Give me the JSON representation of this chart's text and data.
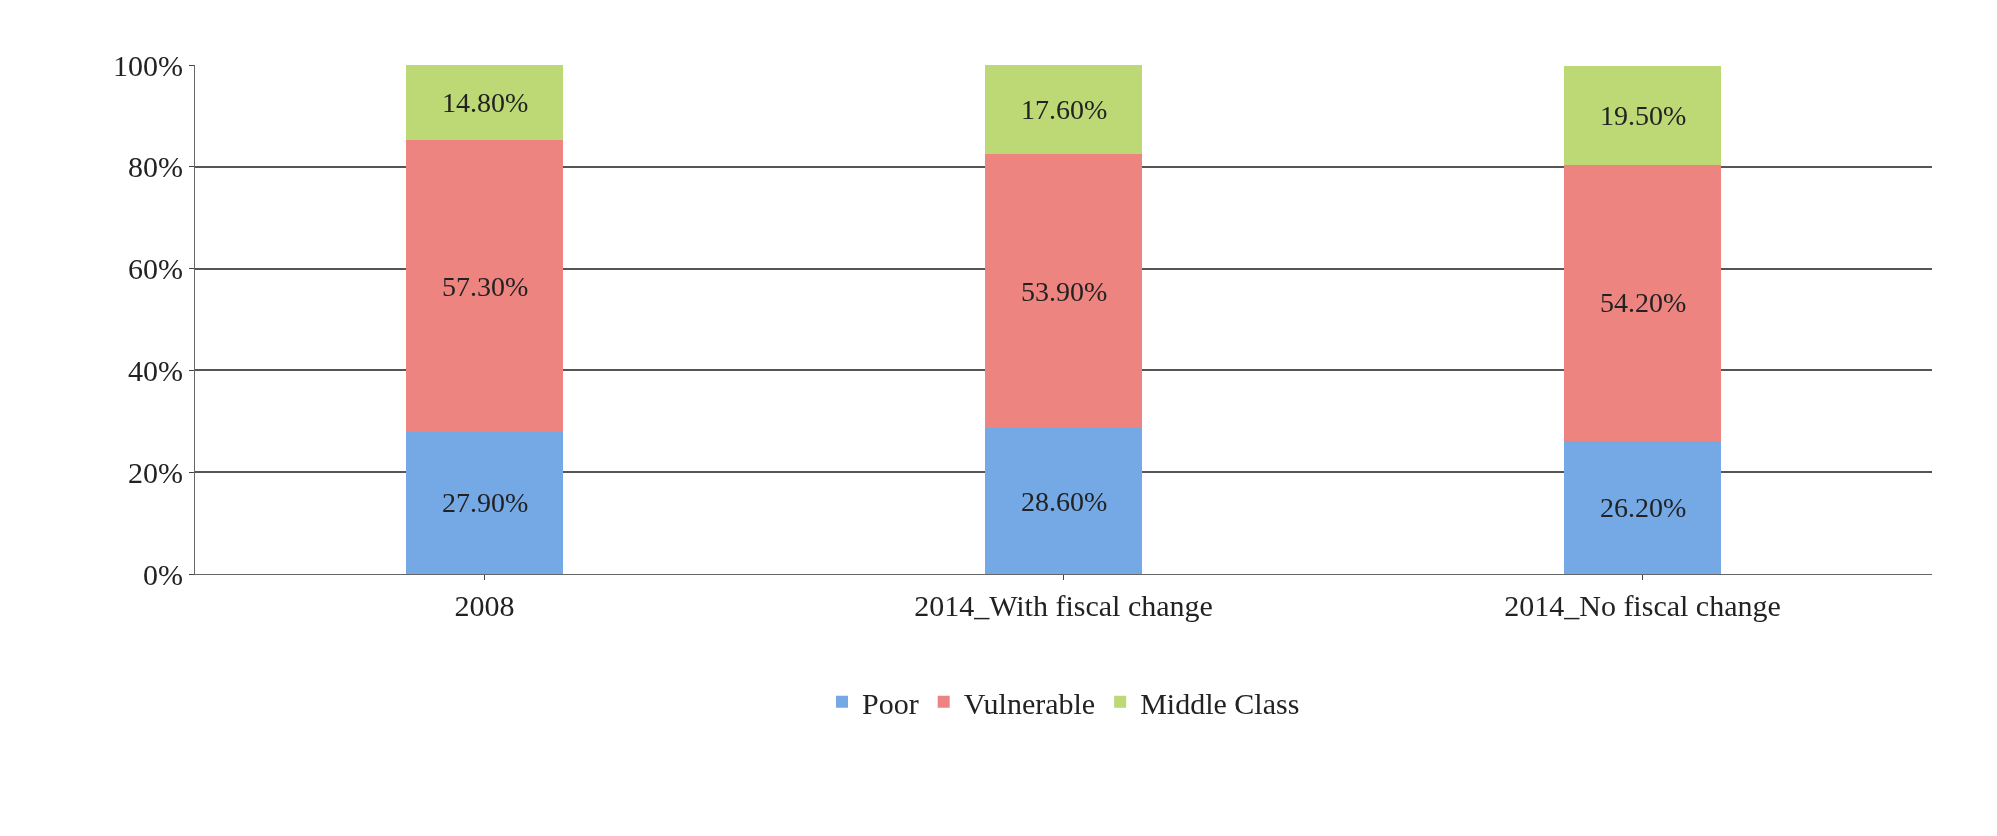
{
  "chart_data": {
    "type": "bar",
    "stacked": true,
    "categories": [
      "2008",
      "2014_With fiscal change",
      "2014_No fiscal change"
    ],
    "series": [
      {
        "name": "Poor",
        "color": "#74a9e6",
        "values": [
          27.9,
          28.6,
          26.2
        ],
        "value_labels": [
          "27.90%",
          "28.60%",
          "26.20%"
        ]
      },
      {
        "name": "Vulnerable",
        "color": "#ee8480",
        "values": [
          57.3,
          53.9,
          54.2
        ],
        "value_labels": [
          "57.30%",
          "53.90%",
          "54.20%"
        ]
      },
      {
        "name": "Middle Class",
        "color": "#bcd975",
        "values": [
          14.8,
          17.6,
          19.5
        ],
        "value_labels": [
          "14.80%",
          "17.60%",
          "19.50%"
        ]
      }
    ],
    "ylim": [
      0,
      100
    ],
    "yticks": [
      {
        "value": 0,
        "label": "0%"
      },
      {
        "value": 20,
        "label": "20%"
      },
      {
        "value": 40,
        "label": "40%"
      },
      {
        "value": 60,
        "label": "60%"
      },
      {
        "value": 80,
        "label": "80%"
      },
      {
        "value": 100,
        "label": "100%"
      }
    ],
    "grid": "y",
    "legend": "bottom"
  }
}
